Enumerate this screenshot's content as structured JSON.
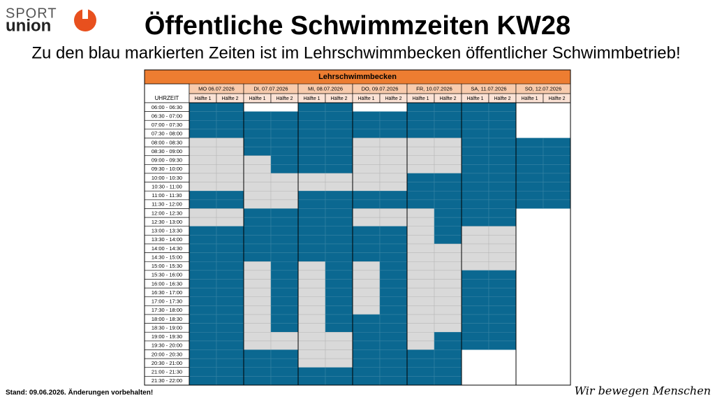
{
  "logo": {
    "line1": "SPORT",
    "line2": "union"
  },
  "title": "Öffentliche Schwimmzeiten KW28",
  "subtitle": "Zu den blau markierten Zeiten ist im Lehrschwimmbecken öffentlicher Schwimmbetrieb!",
  "table": {
    "title": "Lehrschwimmbecken",
    "time_header": "UHRZEIT",
    "colors": {
      "B": "#0b6891",
      "G": "#d9d9d9",
      "W": "#ffffff"
    },
    "times": [
      "06:00 - 06:30",
      "06:30 - 07:00",
      "07:00 - 07:30",
      "07:30 - 08:00",
      "08:00 - 08:30",
      "08:30 - 09:00",
      "09:00 - 09:30",
      "09:30 - 10:00",
      "10:00 - 10:30",
      "10:30 - 11:00",
      "11:00 - 11:30",
      "11:30 - 12:00",
      "12:00 - 12:30",
      "12:30 - 13:00",
      "13:00 - 13:30",
      "13:30 - 14:00",
      "14:00 - 14:30",
      "14:30 - 15:00",
      "15:00 - 15:30",
      "15:30 - 16:00",
      "16:00 - 16:30",
      "16:30 - 17:00",
      "17:00 - 17:30",
      "17:30 - 18:00",
      "18:00 - 18:30",
      "18:30 - 19:00",
      "19:00 - 19:30",
      "19:30 - 20:00",
      "20:00 - 20:30",
      "20:30 - 21:00",
      "21:00 - 21:30",
      "21:30 - 22:00"
    ],
    "days": [
      {
        "label": "MO 06.07.2026",
        "halves": [
          "Hälfte 1",
          "Hälfte 2"
        ],
        "slots": [
          "BBBBGGGGGGBBGGBBBBBBBBBBBBBBBBBB",
          "BBBBGGGGGGBBGGBBBBBBBBBBBBBBBBBB"
        ]
      },
      {
        "label": "DI, 07.07.2026",
        "halves": [
          "Hälfte 1",
          "Hälfte 2"
        ],
        "slots": [
          "WBBBBBGGGGGGBBBBBBGGGGGGGGGGBBBB",
          "WBBBBBBBGGGGBBBBBBBBBBBBBBGGBBBB"
        ]
      },
      {
        "label": "MI, 08.07.2026",
        "halves": [
          "Hälfte 1",
          "Hälfte 2"
        ],
        "slots": [
          "BBBBBBBBGGBBBBBBBBGGGGGGGGGGGGBB",
          "BBBBBBBBGGBBBBBBBBBBBBBBBBGGGGBB"
        ]
      },
      {
        "label": "DO, 09.07.2026",
        "halves": [
          "Hälfte 1",
          "Hälfte 2"
        ],
        "slots": [
          "WBBBGGGGGGBBGGBBBBGGGGGGBBBBBBBB",
          "WBBBGGGGGGBBGGBBBBBBBBBBBBBBBBBB"
        ]
      },
      {
        "label": "FR, 10.07.2026",
        "halves": [
          "Hälfte 1",
          "Hälfte 2"
        ],
        "slots": [
          "BBBBGGGGBBBBGGGGGGGGGGGGGGGGBBBB",
          "BBBBGGGGBBBBBBBBGGGGGGGGGGBBBBBB"
        ]
      },
      {
        "label": "SA, 11.07.2026",
        "halves": [
          "Hälfte 1",
          "Hälfte 2"
        ],
        "slots": [
          "BBBBBBBBBBBBBBGGGGGBBBBBBBBBWWWW",
          "BBBBBBBBBBBBBBGGGGGBBBBBBBBBWWWW"
        ]
      },
      {
        "label": "SO, 12.07.2026",
        "halves": [
          "Hälfte 1",
          "Hälfte 2"
        ],
        "slots": [
          "WWWWBBBBBBBBWWWWWWWWWWWWWWWWWWWW",
          "WWWWBBBBBBBBWWWWWWWWWWWWWWWWWWWW"
        ]
      }
    ]
  },
  "footer": {
    "note": "Stand: 09.06.2026. Änderungen vorbehalten!",
    "slogan": "Wir bewegen Menschen"
  }
}
